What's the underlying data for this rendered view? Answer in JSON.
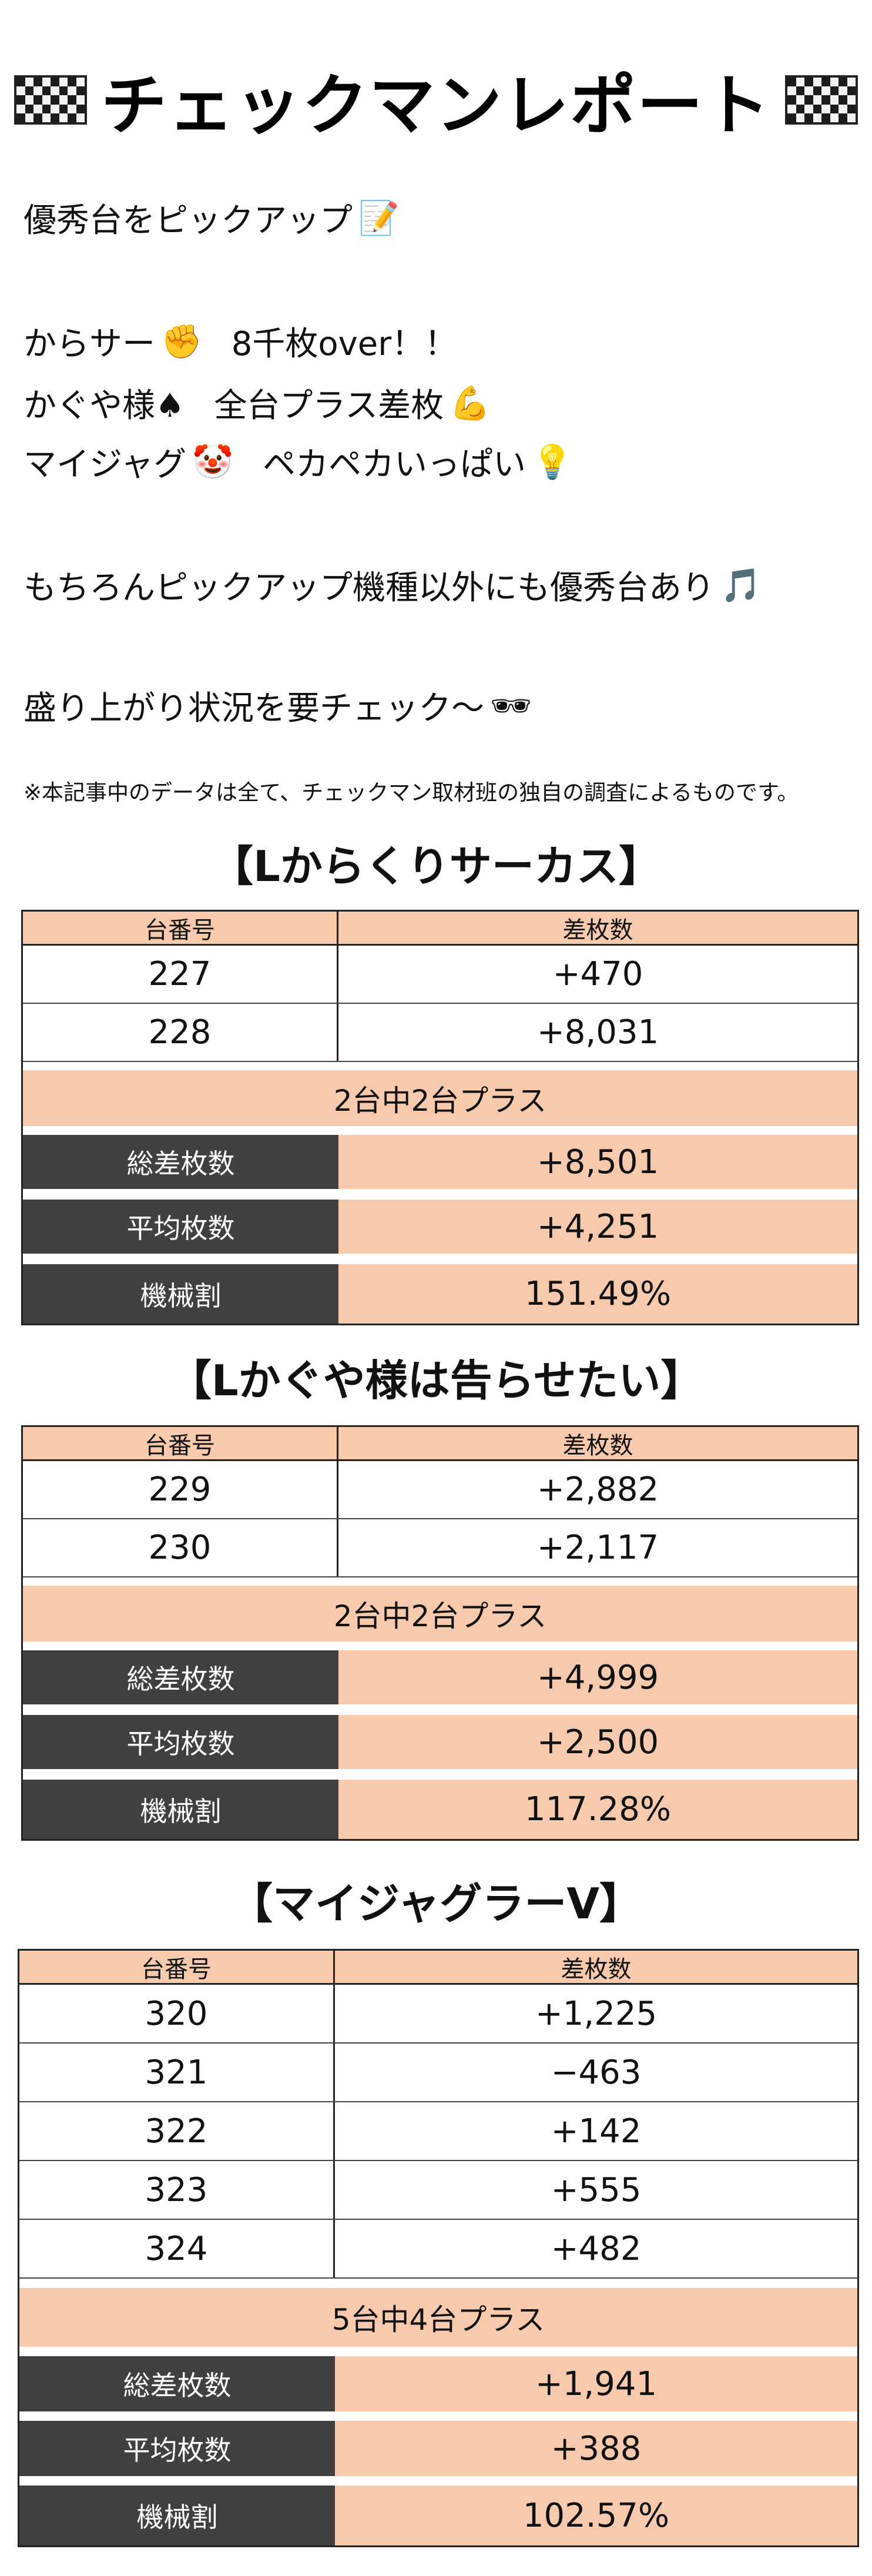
{
  "title": "チェックマンレポート",
  "intro": {
    "line1": "優秀台をピックアップ",
    "line2a": "からサー",
    "line2b": "8千枚over！！",
    "line3a": "かぐや様♠",
    "line3b": "全台プラス差枚",
    "line4a": "マイジャグ",
    "line4b": "ペカペカいっぱい",
    "line5": "もちろんピックアップ機種以外にも優秀台あり",
    "line6": "盛り上がり状況を要チェック〜",
    "emoji": {
      "memo": "📝",
      "fist": "✊",
      "muscle": "💪",
      "clown": "🤡",
      "bulb": "💡",
      "music": "🎵",
      "glasses": "🕶"
    }
  },
  "note": "※本記事中のデータは全て、チェックマン取材班の独自の調査によるものです。",
  "sections": [
    {
      "title": "【Lからくりサーカス】",
      "header": {
        "col1": "台番号",
        "col2": "差枚数"
      },
      "rows": [
        {
          "no": "227",
          "diff": "+470"
        },
        {
          "no": "228",
          "diff": "+8,031"
        }
      ],
      "summary": "2台中2台プラス",
      "stats": [
        {
          "label": "総差枚数",
          "value": "+8,501"
        },
        {
          "label": "平均枚数",
          "value": "+4,251"
        },
        {
          "label": "機械割",
          "value": "151.49%"
        }
      ]
    },
    {
      "title": "【Lかぐや様は告らせたい】",
      "header": {
        "col1": "台番号",
        "col2": "差枚数"
      },
      "rows": [
        {
          "no": "229",
          "diff": "+2,882"
        },
        {
          "no": "230",
          "diff": "+2,117"
        }
      ],
      "summary": "2台中2台プラス",
      "stats": [
        {
          "label": "総差枚数",
          "value": "+4,999"
        },
        {
          "label": "平均枚数",
          "value": "+2,500"
        },
        {
          "label": "機械割",
          "value": "117.28%"
        }
      ]
    },
    {
      "title": "【マイジャグラーV】",
      "header": {
        "col1": "台番号",
        "col2": "差枚数"
      },
      "rows": [
        {
          "no": "320",
          "diff": "+1,225"
        },
        {
          "no": "321",
          "diff": "−463"
        },
        {
          "no": "322",
          "diff": "+142"
        },
        {
          "no": "323",
          "diff": "+555"
        },
        {
          "no": "324",
          "diff": "+482"
        }
      ],
      "summary": "5台中4台プラス",
      "stats": [
        {
          "label": "総差枚数",
          "value": "+1,941"
        },
        {
          "label": "平均枚数",
          "value": "+388"
        },
        {
          "label": "機械割",
          "value": "102.57%"
        }
      ]
    }
  ],
  "colors": {
    "accent": "#f7c9ad",
    "label_bg": "#404040",
    "border": "#222222"
  }
}
